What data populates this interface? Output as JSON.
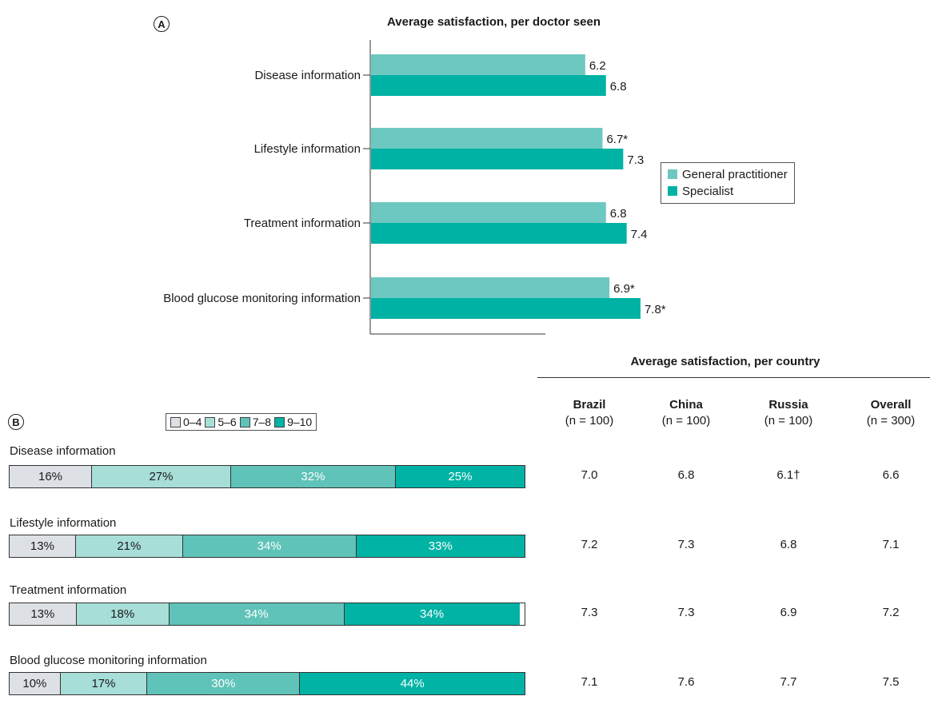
{
  "colors": {
    "gp": "#6cc8c0",
    "specialist": "#00b2a4",
    "s04": "#dde1e6",
    "s56": "#a8ded8",
    "s78": "#5fc3b9",
    "s910": "#00b3a5"
  },
  "panel_a": {
    "label": "A",
    "chart_data": {
      "type": "bar",
      "orientation": "horizontal",
      "title": "Average satisfaction, per doctor seen",
      "categories": [
        "Disease information",
        "Lifestyle information",
        "Treatment information",
        "Blood glucose monitoring information"
      ],
      "series": [
        {
          "name": "General practitioner",
          "values": [
            6.2,
            6.7,
            6.8,
            6.9
          ],
          "labels": [
            "6.2",
            "6.7*",
            "6.8",
            "6.9*"
          ]
        },
        {
          "name": "Specialist",
          "values": [
            6.8,
            7.3,
            7.4,
            7.8
          ],
          "labels": [
            "6.8",
            "7.3",
            "7.4",
            "7.8*"
          ]
        }
      ],
      "xlim": [
        0,
        10
      ],
      "legend_position": "right"
    }
  },
  "panel_b": {
    "label": "B",
    "legend": [
      "0–4",
      "5–6",
      "7–8",
      "9–10"
    ],
    "chart_data": {
      "type": "bar",
      "stacked": true,
      "orientation": "horizontal",
      "categories": [
        "Disease information",
        "Lifestyle information",
        "Treatment information",
        "Blood glucose monitoring information"
      ],
      "series": [
        {
          "name": "0–4",
          "values": [
            16,
            13,
            13,
            10
          ]
        },
        {
          "name": "5–6",
          "values": [
            27,
            21,
            18,
            17
          ]
        },
        {
          "name": "7–8",
          "values": [
            32,
            34,
            34,
            30
          ]
        },
        {
          "name": "9–10",
          "values": [
            25,
            33,
            34,
            44
          ]
        }
      ],
      "unit": "%"
    }
  },
  "country_table": {
    "title": "Average satisfaction, per country",
    "columns": [
      {
        "country": "Brazil",
        "n": "(n = 100)"
      },
      {
        "country": "China",
        "n": "(n = 100)"
      },
      {
        "country": "Russia",
        "n": "(n = 100)"
      },
      {
        "country": "Overall",
        "n": "(n = 300)"
      }
    ],
    "rows": [
      [
        "7.0",
        "6.8",
        "6.1†",
        "6.6"
      ],
      [
        "7.2",
        "7.3",
        "6.8",
        "7.1"
      ],
      [
        "7.3",
        "7.3",
        "6.9",
        "7.2"
      ],
      [
        "7.1",
        "7.6",
        "7.7",
        "7.5"
      ]
    ]
  }
}
